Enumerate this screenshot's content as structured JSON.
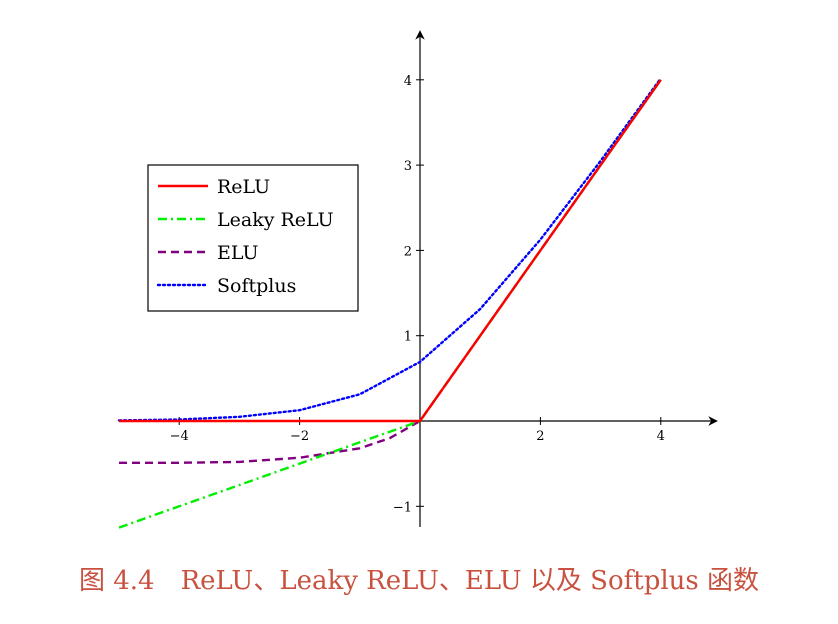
{
  "caption": "图 4.4　ReLU、Leaky ReLU、ELU 以及 Softplus 函数",
  "chart_data": {
    "type": "line",
    "title": "",
    "xlabel": "",
    "ylabel": "",
    "xlim": [
      -5,
      5
    ],
    "ylim": [
      -1.2,
      4.5
    ],
    "x_ticks": [
      -4,
      -2,
      2,
      4
    ],
    "x_tick_labels": [
      "−4",
      "−2",
      "2",
      "4"
    ],
    "y_ticks": [
      -1,
      1,
      2,
      3,
      4
    ],
    "y_tick_labels": [
      "−1",
      "1",
      "2",
      "3",
      "4"
    ],
    "grid": false,
    "legend_position": "upper-left",
    "series": [
      {
        "name": "ReLU",
        "color": "#ff0000",
        "dash": "solid",
        "x": [
          -5,
          -4,
          -3,
          -2,
          -1,
          0,
          1,
          2,
          3,
          4
        ],
        "y": [
          0,
          0,
          0,
          0,
          0,
          0,
          1,
          2,
          3,
          4
        ]
      },
      {
        "name": "Leaky ReLU",
        "color": "#00ee00",
        "dash": "dashdot",
        "x": [
          -5,
          -4,
          -3,
          -2,
          -1,
          0,
          1,
          2,
          3,
          4
        ],
        "y": [
          -1.25,
          -1.0,
          -0.75,
          -0.5,
          -0.25,
          0,
          1,
          2,
          3,
          4
        ]
      },
      {
        "name": "ELU",
        "color": "#800080",
        "dash": "dashed",
        "x": [
          -5,
          -4,
          -3,
          -2,
          -1,
          -0.5,
          0,
          1,
          2,
          3,
          4
        ],
        "y": [
          -0.49,
          -0.49,
          -0.48,
          -0.43,
          -0.32,
          -0.2,
          0,
          1,
          2,
          3,
          4
        ]
      },
      {
        "name": "Softplus",
        "color": "#0000ff",
        "dash": "dotted",
        "x": [
          -5,
          -4,
          -3,
          -2,
          -1,
          0,
          1,
          2,
          3,
          4
        ],
        "y": [
          0.007,
          0.018,
          0.049,
          0.127,
          0.313,
          0.693,
          1.313,
          2.127,
          3.049,
          4.018
        ]
      }
    ]
  }
}
